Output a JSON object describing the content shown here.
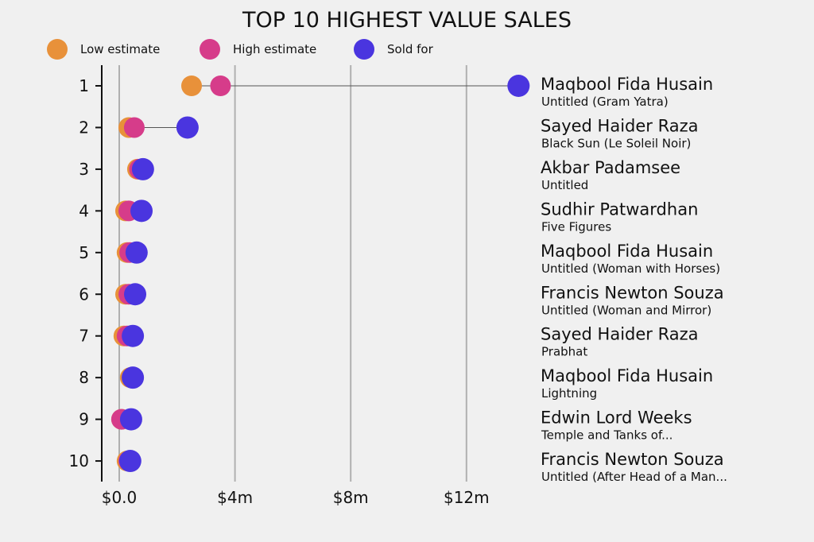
{
  "chart_data": {
    "type": "scatter",
    "title": "TOP 10 HIGHEST VALUE SALES",
    "legend": [
      {
        "name": "Low estimate",
        "color": "#e8913a"
      },
      {
        "name": "High estimate",
        "color": "#d63c8a"
      },
      {
        "name": "Sold for",
        "color": "#4a35df"
      }
    ],
    "legend_position": "top-left",
    "x_ticks": [
      {
        "value": 0,
        "label": "$0.0"
      },
      {
        "value": 4,
        "label": "$4m"
      },
      {
        "value": 8,
        "label": "$8m"
      },
      {
        "value": 12,
        "label": "$12m"
      }
    ],
    "xlim": [
      -0.6,
      14.5
    ],
    "unit": "$m",
    "rows": [
      {
        "rank": "1",
        "artist": "Maqbool Fida Husain",
        "work": "Untitled (Gram Yatra)",
        "low": 2.5,
        "high": 3.5,
        "sold": 13.8
      },
      {
        "rank": "2",
        "artist": "Sayed Haider Raza",
        "work": "Black Sun (Le Soleil Noir)",
        "low": 0.33,
        "high": 0.52,
        "sold": 2.36
      },
      {
        "rank": "3",
        "artist": "Akbar Padamsee",
        "work": "Untitled",
        "low": 0.63,
        "high": 0.7,
        "sold": 0.82
      },
      {
        "rank": "4",
        "artist": "Sudhir Patwardhan",
        "work": "Five Figures",
        "low": 0.22,
        "high": 0.33,
        "sold": 0.77
      },
      {
        "rank": "5",
        "artist": "Maqbool Fida Husain",
        "work": "Untitled (Woman with Horses)",
        "low": 0.27,
        "high": 0.36,
        "sold": 0.6
      },
      {
        "rank": "6",
        "artist": "Francis Newton Souza",
        "work": "Untitled (Woman and Mirror)",
        "low": 0.22,
        "high": 0.33,
        "sold": 0.55
      },
      {
        "rank": "7",
        "artist": "Sayed Haider Raza",
        "work": "Prabhat",
        "low": 0.16,
        "high": 0.27,
        "sold": 0.47
      },
      {
        "rank": "8",
        "artist": "Maqbool Fida Husain",
        "work": "Lightning",
        "low": 0.38,
        "high": 0.49,
        "sold": 0.47
      },
      {
        "rank": "9",
        "artist": "Edwin Lord Weeks",
        "work": "Temple and Tanks of...",
        "low": 0.08,
        "high": 0.08,
        "sold": 0.41
      },
      {
        "rank": "10",
        "artist": "Francis Newton Souza",
        "work": "Untitled (After Head of a Man...",
        "low": 0.27,
        "high": 0.33,
        "sold": 0.38
      }
    ]
  }
}
